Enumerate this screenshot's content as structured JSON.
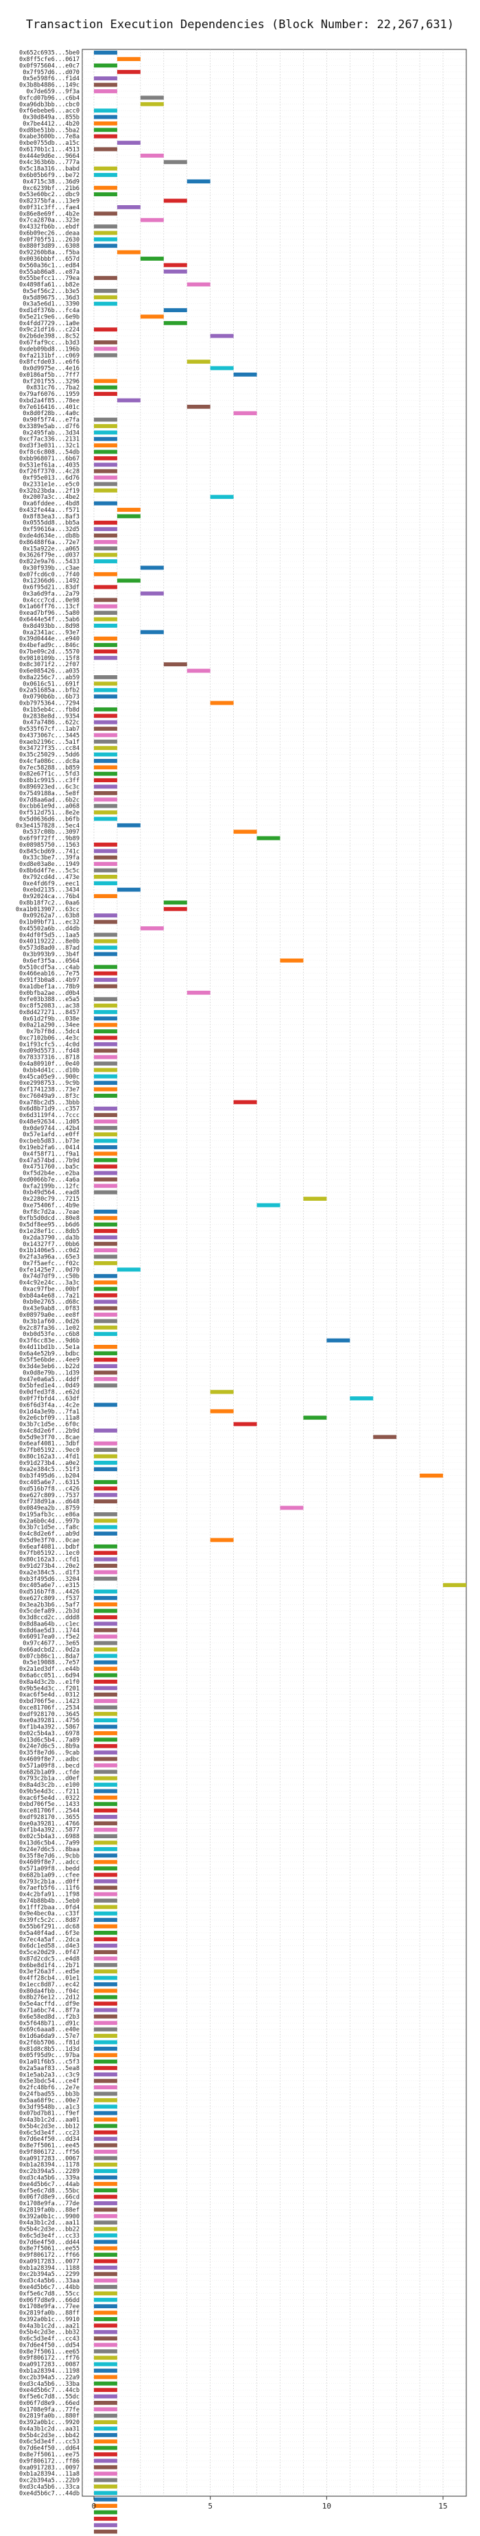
{
  "chart_data": {
    "type": "bar",
    "orientation": "horizontal-gantt",
    "title": "Transaction Execution Dependencies (Block Number: 22,267,631)",
    "xlabel": "",
    "ylabel": "",
    "xlim": [
      -0.5,
      16
    ],
    "xticks": [
      0,
      5,
      10,
      15
    ],
    "grid": true,
    "categories": [
      "0x652c6935...5be0",
      "0x8ff5cfe6...0617",
      "0x0f975604...e0c7",
      "0x7f957d6...d070",
      "0x5e598f6...f1d4",
      "0x3b8b4886...149c",
      "0x7de659...9f3a",
      "0xfcd07b96...c6b4",
      "0xa96db3bb...cbc0",
      "0xf6ebebe6...acc0",
      "0x30d849a...855b",
      "0x7be4412...4b20",
      "0xd8be51bb...5ba2",
      "0xabe3600b...7e8a",
      "0xbe0755db...a15c",
      "0x6170b1c1...4513",
      "0x444e9d6e...9664",
      "0x4c363b6b...777a",
      "0x5c18a316...babd",
      "0x6b05b6f9...be72",
      "0x4715c38...36d9",
      "0xc6239bf...21b6",
      "0x53e60bc2...dbc9",
      "0x82375bfa...13e9",
      "0x0f31c3ff...fae4",
      "0x86e8e69f...4b2e",
      "0x7ca2870a...323e",
      "0x4332fb6b...ebdf",
      "0x6b09ec26...deaa",
      "0x0f705f51...2630",
      "0x880f3d89...6308",
      "0x92260b8a...f5ba",
      "0x0036bbbf...657d",
      "0x560a36c1...ed84",
      "0x55ab86a8...e87a",
      "0x55befcc1...79ea",
      "0x4898fa61...b82e",
      "0x5ef56c2...b3e5",
      "0x5d89675...36d3",
      "0x3a5e6d1...3390",
      "0xd1df376b...fc4a",
      "0x5e21c9e6...6e9b",
      "0x4fdd7729...1a0e",
      "0x9c21df16...c224",
      "0x2b6de398...8c52",
      "0x67faf9cc...b3d3",
      "0xdeb09bd8...196b",
      "0xfa2131bf...c069",
      "0x8fcfde03...e6f6",
      "0x0d9975e...4e16",
      "0x0186af5b...7ff7",
      "0xf201f55...3296",
      "0x831c76...7ba2",
      "0x79af6076...1959",
      "0xbd2a4f85...78ee",
      "0x7e616416...401c",
      "0x8d0f28b...4a0c",
      "0x90f5f74...e7fa",
      "0x3389e5ab...d7f6",
      "0x2495fab...3d34",
      "0xcf7ac336...2131",
      "0xd3f3e031...32c1",
      "0xf8c6c808...54db",
      "0xbb968071...6b67",
      "0x531ef61a...4035",
      "0xf26f7370...4c28",
      "0xf95e013...6d76",
      "0x2331e1e...e5c0",
      "0x32b23bda...2f19",
      "0x2007a3c...4be2",
      "0xa6fddee...4bd8",
      "0x432fe44a...f571",
      "0x8f83ea3...8af3",
      "0x0555dd8...bb5a",
      "0xf59616a...32d5",
      "0xde4d634e...db8b",
      "0x86488f6a...72e7",
      "0x15a922e...a065",
      "0x3626f79e...d037",
      "0x822e9a76...5433",
      "0x30f939b...c3ae",
      "0x07fcd6c0...7f40",
      "0x12366d6...1492",
      "0x6f95d21...83df",
      "0x3a6d9fa...2a79",
      "0x4ccc7cd...0e98",
      "0x1a66ff76...13cf",
      "0xead7bf96...5a80",
      "0x6444e54f...5ab6",
      "0x8d493bb...8d98",
      "0xa2341ac...93e7",
      "0x39d0444e...e940",
      "0x4befad9c...846c",
      "0x7be09c2d...5570",
      "0x9810109b...15f8",
      "0x8c3071f2...2f07",
      "0x6e085426...a035",
      "0x8a2256c7...ab59",
      "0x0616c51...691f",
      "0x2a51685a...bfb2",
      "0x0790b6b...6b73",
      "0xb7975364...7294",
      "0x1b5eb4c...fb8d",
      "0x2838e8d...9354",
      "0x47a7486...622c",
      "0x535f67cf...1ab7",
      "0x4373067c...3445",
      "0xaeb2196c...5a1f",
      "0x34727f35...cc84",
      "0x35c25029...5dd6",
      "0x4cfa086c...dc8a",
      "0x7ec58288...b859",
      "0x82e67f1c...5fd3",
      "0x8b1c9915...c3ff",
      "0x896923ed...6c3c",
      "0x7549188a...5e8f",
      "0x7d8aa6ad...6b2c",
      "0xcbb61e9d...a068",
      "0xf512d751...8e2e",
      "0x5d0636d6...b6fb",
      "0x3e4157828...5ec4",
      "0x537c08b...3097",
      "0x6f9f72ff...9b89",
      "0x08985750...1563",
      "0x845cbd69...741c",
      "0x33c3be7...39fa",
      "0xd8e03a8e...1949",
      "0x8b6d4f7e...5c5c",
      "0x792cd4d...473e",
      "0xe4fd6f9...eec1",
      "0xebd2135...3434",
      "0x92024ca...76b4",
      "0x8b18f7c2...0aa6",
      "0xa1b013907...63cc",
      "0x09262a7...63b8",
      "0x1b09bf71...ec32",
      "0x45502a6b...d4db",
      "0x4df0f5d5...1aa5",
      "0x40119222...8e0b",
      "0x573d8ad0...87ad",
      "0x3b993b9...3b4f",
      "0x6ef3f5a...0564",
      "0x510cdf5a...c4ab",
      "0x466eab16...7e75",
      "0x91f3b0a8...4b97",
      "0xa1dbef1a...78b9",
      "0x0bfba2ae...d0b4",
      "0xfe03b388...e5a5",
      "0xc8f52083...ac38",
      "0x8d427271...8457",
      "0x61d2f9b...038e",
      "0x0a21a290...34ee",
      "0x7b7f8d...5dc4",
      "0xc7102b06...4e3c",
      "0x1f93cfc5...4c0d",
      "0xd09d5573...fd48",
      "0x78337316...8718",
      "0x4a80910f...0e40",
      "0xbb4d41c...d10b",
      "0x45ca05e9...900c",
      "0xe2998753...9c9b",
      "0xf1741238...73e7",
      "0xc76049a9...8f3c",
      "0xa78bc2d5...3bbb",
      "0x6d8b71d9...c357",
      "0x6d3119f4...7ccc",
      "0x48e92634...1d05",
      "0x0de9744...42b4",
      "0x57e1afd...e0ff",
      "0xcbeb5d83...b73e",
      "0x19eb2fa6...0414",
      "0x4f58f71...f9a1",
      "0x47a574bd...7b9d",
      "0x4751760...ba5c",
      "0xf5d2b4e...e2ba",
      "0xd0066b7e...4a6a",
      "0xfa2199b...12fc",
      "0xb49d564...ead8",
      "0x2280c79...7215",
      "0xe75406f...4b9e",
      "0xf8c7d2a...7eae",
      "0xfb5d0dcd...80e8",
      "0x5df8ee95...b6d6",
      "0x1e28ef1c...8db5",
      "0x2da3790...da3b",
      "0x14327f7...0bb6",
      "0x1b1406e5...c0d2",
      "0x2fa3a96a...65e3",
      "0x7f5aefc...f02c",
      "0xfe1425e7...0d70",
      "0x74d7df9...c50b",
      "0x4c92e24c...3a3c",
      "0xac97fbe...00bf",
      "0xb84a4e68...7a21",
      "0xb0e2765...d68c",
      "0x43e9ab8...0f83",
      "0x08979a0e...ee8f",
      "0x3b1af60...0d26",
      "0x2c87fa36...1e02",
      "0xb0d53fe...c6b8",
      "0x3f6cc83e...9d6b",
      "0x4d11bd1b...5e1a",
      "0x6a4e52b9...bdbc",
      "0x5f5e6bde...4ee9",
      "0x3d4e3eb6...b22d",
      "0x0d8e79b...1d39",
      "0x47e0a6a5...4ddf",
      "0x5bfed1e4...0d49",
      "0x0dfed3f8...e62d",
      "0x0f7fbfd4...63df",
      "0x6f6d3f4a...4c2e",
      "0x1d4a3e9b...7fa1",
      "0x2e6cbf09...11a8",
      "0x3b7c1d5e...6f0c",
      "0x4c8d2e6f...2b9d",
      "0x5d9e3f70...8cae",
      "0x6eaf4081...3dbf",
      "0x7fb05192...9ec0",
      "0x80c162a3...4fd1",
      "0x91d273b4...a0e2",
      "0xa2e384c5...51f3",
      "0xb3f495d6...b204",
      "0xc405a6e7...6315",
      "0xd516b7f8...c426",
      "0xe627c809...7537",
      "0xf738d91a...d648",
      "0x0849ea2b...8759",
      "0x195afb3c...e86a",
      "0x2a6b0c4d...997b",
      "0x3b7c1d5e...fa8c",
      "0x4c8d2e6f...ab9d",
      "0x5d9e3f70...0cae",
      "0x6eaf4081...bdbf",
      "0x7fb05192...1ec0",
      "0x80c162a3...cfd1",
      "0x91d273b4...20e2",
      "0xa2e384c5...d1f3",
      "0xb3f495d6...3204",
      "0xc405a6e7...e315",
      "0xd516b7f8...4426",
      "0xe627c809...f537",
      "0x3ea2b3b6...5af7",
      "0x5cdefa89...2b3d",
      "0x3d8ccd2c...ddd8",
      "0x8d8aa64b...c1ec",
      "0x8d6ae5d3...1744",
      "0x60917ea0...f5e2",
      "0x97c4677...3e65",
      "0x66adcbd2...0d2a",
      "0x07cb86c1...8da7",
      "0x5e19088...7e57",
      "0x2a1ed3df...e44b",
      "0x6a6cc051...6d94",
      "0x8a4d3c2b...e1f0",
      "0x9b5e4d3c...f201",
      "0xac6f5e4d...0312",
      "0xbd706f5e...1423",
      "0xce81706f...2534",
      "0xdf928170...3645",
      "0xe0a39281...4756",
      "0xf1b4a392...5867",
      "0x02c5b4a3...6978",
      "0x13d6c5b4...7a89",
      "0x24e7d6c5...8b9a",
      "0x35f8e7d6...9cab",
      "0x4609f8e7...adbc",
      "0x571a09f8...becd",
      "0x682b1a09...cfde",
      "0x793c2b1a...d0ef",
      "0x8a4d3c2b...e100",
      "0x9b5e4d3c...f211",
      "0xac6f5e4d...0322",
      "0xbd706f5e...1433",
      "0xce81706f...2544",
      "0xdf928170...3655",
      "0xe0a39281...4766",
      "0xf1b4a392...5877",
      "0x02c5b4a3...6988",
      "0x13d6c5b4...7a99",
      "0x24e7d6c5...8baa",
      "0x35f8e7d6...9cbb",
      "0x4609f8e7...adcc",
      "0x571a09f8...bedd",
      "0x682b1a09...cfee",
      "0x793c2b1a...d0ff",
      "0x7aefb5f6...11f6",
      "0x4c2bfa91...1f98",
      "0x74b88b4b...5eb0",
      "0x1fff2baa...0fd4",
      "0x9e4bec0a...c33f",
      "0x39fc5c2c...8d87",
      "0x55b6f291...dc68",
      "0x5a40f4ad...6f3e",
      "0x7ec4a5af...2dca",
      "0x6dc1ed58...d4e3",
      "0x5ce20d29...0f47",
      "0x87d2cdc5...e4d8",
      "0x6be8d1f4...2b71",
      "0x3ef26a3f...ed5e",
      "0x4ff28cb4...01e1",
      "0x1ecc8d87...ec42",
      "0x80da4fbb...f04c",
      "0x8b276e12...2d12",
      "0x5e4acffd...df9e",
      "0x71a6bc74...8f7a",
      "0x6e58ed8d...f2b3",
      "0x5f648b71...d91c",
      "0x69c6aaa8...e40e",
      "0x1d6a6da9...57e7",
      "0x2f6b5706...f81d",
      "0x81d8c8b5...1d3d",
      "0x05f95d9c...97ba",
      "0x1a01f6b5...c5f3",
      "0x2a5aaf83...5ea8",
      "0x1e5ab2a3...c3c9",
      "0x5e3bdc54...ce4f",
      "0x2fc48bf6...2e7e",
      "0x24fbad55...bb3b",
      "0x5aa68f9c...00e7",
      "0x3df9548b...a1c3",
      "0x07bd7b81...f9ef",
      "0x4a3b1c2d...aa01",
      "0x5b4c2d3e...bb12",
      "0x6c5d3e4f...cc23",
      "0x7d6e4f50...dd34",
      "0x8e7f5061...ee45",
      "0x9f806172...ff56",
      "0xa0917283...0067",
      "0xb1a28394...1178",
      "0xc2b394a5...2289",
      "0xd3c4a5b6...339a",
      "0xe4d5b6c7...44ab",
      "0xf5e6c7d8...55bc",
      "0x06f7d8e9...66cd",
      "0x1708e9fa...77de",
      "0x2819fa0b...88ef",
      "0x392a0b1c...9900",
      "0x4a3b1c2d...aa11",
      "0x5b4c2d3e...bb22",
      "0x6c5d3e4f...cc33",
      "0x7d6e4f50...dd44",
      "0x8e7f5061...ee55",
      "0x9f806172...ff66",
      "0xa0917283...0077",
      "0xb1a28394...1188",
      "0xc2b394a5...2299",
      "0xd3c4a5b6...33aa",
      "0xe4d5b6c7...44bb",
      "0xf5e6c7d8...55cc",
      "0x06f7d8e9...66dd",
      "0x1708e9fa...77ee",
      "0x2819fa0b...88ff",
      "0x392a0b1c...9910",
      "0x4a3b1c2d...aa21",
      "0x5b4c2d3e...bb32",
      "0x6c5d3e4f...cc43",
      "0x7d6e4f50...dd54",
      "0x8e7f5061...ee65",
      "0x9f806172...ff76",
      "0xa0917283...0087",
      "0xb1a28394...1198",
      "0xc2b394a5...22a9",
      "0xd3c4a5b6...33ba",
      "0xe4d5b6c7...44cb",
      "0xf5e6c7d8...55dc",
      "0x06f7d8e9...66ed",
      "0x1708e9fa...77fe",
      "0x2819fa0b...880f",
      "0x392a0b1c...9920",
      "0x4a3b1c2d...aa31",
      "0x5b4c2d3e...bb42",
      "0x6c5d3e4f...cc53",
      "0x7d6e4f50...dd64",
      "0x8e7f5061...ee75",
      "0x9f806172...ff86",
      "0xa0917283...0097",
      "0xb1a28394...11a8",
      "0xc2b394a5...22b9",
      "0xd3c4a5b6...33ca",
      "0xe4d5b6c7...44db"
    ],
    "start": [
      0,
      1,
      0,
      1,
      0,
      0,
      0,
      2,
      2,
      0,
      0,
      0,
      0,
      0,
      1,
      0,
      2,
      3,
      0,
      0,
      4,
      0,
      0,
      3,
      1,
      0,
      2,
      0,
      0,
      0,
      0,
      1,
      2,
      3,
      3,
      0,
      4,
      0,
      0,
      0,
      3,
      2,
      3,
      0,
      5,
      0,
      0,
      0,
      4,
      5,
      6,
      0,
      0,
      0,
      1,
      4,
      6,
      0,
      0,
      0,
      0,
      0,
      0,
      0,
      0,
      0,
      0,
      0,
      0,
      5,
      0,
      1,
      1,
      0,
      0,
      0,
      0,
      0,
      0,
      0,
      2,
      0,
      1,
      0,
      2,
      0,
      0,
      0,
      0,
      0,
      2,
      0,
      0,
      0,
      0,
      3,
      4,
      0,
      0,
      0,
      0,
      5,
      0,
      0,
      0,
      0,
      0,
      0,
      0,
      0,
      0,
      0,
      0,
      0,
      0,
      0,
      0,
      0,
      0,
      0,
      1,
      6,
      7,
      0,
      0,
      0,
      0,
      0,
      0,
      0,
      1,
      0,
      3,
      3,
      0,
      0,
      2,
      0,
      0,
      0,
      0,
      8,
      0,
      0,
      0,
      0,
      4,
      0,
      0,
      0,
      0,
      0,
      0,
      0,
      0,
      0,
      0,
      0,
      0,
      0,
      0,
      0,
      0,
      6,
      0,
      0,
      0,
      0,
      0,
      0,
      0,
      0,
      0,
      0,
      0,
      0,
      0,
      0,
      9,
      7,
      0,
      0,
      0,
      0,
      0,
      0,
      0,
      0,
      0,
      1,
      0,
      0,
      0,
      0,
      0,
      0,
      0,
      0,
      0,
      0,
      10,
      0,
      0,
      0,
      0,
      0,
      0,
      0,
      5,
      11,
      0,
      5,
      9,
      6,
      0,
      12,
      0,
      0,
      0,
      0,
      0,
      14,
      0,
      0,
      0,
      0,
      8,
      0,
      0,
      0,
      0,
      5,
      0,
      0,
      0,
      0,
      0,
      0,
      15,
      0,
      0,
      0,
      0,
      0,
      0,
      0,
      0,
      0,
      0,
      0,
      0,
      0,
      0,
      0,
      0,
      0,
      0,
      0,
      0,
      0,
      0,
      0,
      0,
      0,
      0,
      0,
      0,
      0,
      0,
      0,
      0,
      0,
      0,
      0,
      0,
      0,
      0,
      0,
      0,
      0,
      0,
      0,
      0,
      0,
      0,
      0,
      0,
      0,
      0,
      0,
      0,
      0,
      0,
      0,
      0,
      0,
      0,
      0,
      0,
      0,
      0,
      0,
      0,
      0,
      0,
      0,
      0,
      0,
      0,
      0,
      0,
      0,
      0,
      0,
      0,
      0,
      0,
      0,
      0,
      0,
      0,
      0,
      0,
      0,
      0,
      0,
      0,
      0,
      0,
      0,
      0,
      0,
      0,
      0,
      0,
      0,
      0,
      0,
      0,
      0,
      0,
      0,
      0,
      0,
      0,
      0,
      0,
      0,
      0,
      0,
      0,
      0,
      0,
      0,
      0,
      0,
      0,
      0,
      0,
      0,
      0,
      0,
      0,
      0,
      0,
      0,
      0,
      0,
      0,
      0,
      0,
      0,
      0,
      0,
      0,
      0,
      0,
      0,
      0,
      0,
      0,
      0,
      0,
      0,
      0,
      0,
      0,
      0,
      0,
      0,
      0,
      0,
      0,
      0,
      0,
      0,
      0,
      0,
      0,
      0
    ],
    "duration": [
      1,
      1,
      1,
      1,
      1,
      1,
      1,
      1,
      1,
      1,
      1,
      1,
      1,
      1,
      1,
      1,
      1,
      1,
      1,
      1,
      1,
      1,
      1,
      1,
      1,
      1,
      1,
      1,
      1,
      1,
      1,
      1,
      1,
      1,
      1,
      1,
      1,
      1,
      1,
      1,
      1,
      1,
      1,
      1,
      1,
      1,
      1,
      1,
      1,
      1,
      1,
      1,
      1,
      1,
      1,
      1,
      1,
      1,
      1,
      1,
      1,
      1,
      1,
      1,
      1,
      1,
      1,
      1,
      1,
      1,
      1,
      1,
      1,
      1,
      1,
      1,
      1,
      1,
      1,
      1,
      1,
      1,
      1,
      1,
      1,
      1,
      1,
      1,
      1,
      1,
      1,
      1,
      1,
      1,
      1,
      1,
      1,
      1,
      1,
      1,
      1,
      1,
      1,
      1,
      1,
      1,
      1,
      1,
      1,
      1,
      1,
      1,
      1,
      1,
      1,
      1,
      1,
      1,
      1,
      1,
      1,
      1,
      1,
      1,
      1,
      1,
      1,
      1,
      1,
      1,
      1,
      1,
      1,
      1,
      1,
      1,
      1,
      1,
      1,
      1,
      1,
      1,
      1,
      1,
      1,
      1,
      1,
      1,
      1,
      1,
      1,
      1,
      1,
      1,
      1,
      1,
      1,
      1,
      1,
      1,
      1,
      1,
      1,
      1,
      1,
      1,
      1,
      1,
      1,
      1,
      1,
      1,
      1,
      1,
      1,
      1,
      1,
      1,
      1,
      1,
      1,
      1,
      1,
      1,
      1,
      1,
      1,
      1,
      1,
      1,
      1,
      1,
      1,
      1,
      1,
      1,
      1,
      1,
      1,
      1,
      1,
      1,
      1,
      1,
      1,
      1,
      1,
      1,
      1,
      1,
      1,
      1,
      1,
      1,
      1,
      1,
      1,
      1,
      1,
      1,
      1,
      1,
      1,
      1,
      1,
      1,
      1,
      1,
      1,
      1,
      1,
      1,
      1,
      1,
      1,
      1,
      1,
      1,
      1,
      1,
      1,
      1,
      1,
      1,
      1,
      1,
      1,
      1,
      1,
      1,
      1,
      1,
      1,
      1,
      1,
      1,
      1,
      1,
      1,
      1,
      1,
      1,
      1,
      1,
      1,
      1,
      1,
      1,
      1,
      1,
      1,
      1,
      1,
      1,
      1,
      1,
      1,
      1,
      1,
      1,
      1,
      1,
      1,
      1,
      1,
      1,
      1,
      1,
      1,
      1,
      1,
      1,
      1,
      1,
      1,
      1,
      1,
      1,
      1,
      1,
      1,
      1,
      1,
      1,
      1,
      1,
      1,
      1,
      1,
      1,
      1,
      1,
      1,
      1,
      1,
      1,
      1,
      1,
      1,
      1,
      1,
      1,
      1,
      1,
      1,
      1,
      1,
      1,
      1,
      1,
      1,
      1,
      1,
      1,
      1,
      1,
      1,
      1,
      1,
      1,
      1,
      1,
      1,
      1,
      1,
      1,
      1,
      1,
      1,
      1,
      1,
      1,
      1,
      1,
      1,
      1,
      1,
      1,
      1,
      1,
      1,
      1,
      1,
      1,
      1,
      1,
      1,
      1,
      1,
      1,
      1,
      1,
      1,
      1,
      1,
      1,
      1,
      1,
      1,
      1,
      1,
      1,
      1,
      1,
      1,
      1,
      1,
      1,
      1,
      1,
      1,
      1,
      1,
      1,
      1,
      1,
      1,
      1,
      1,
      1
    ],
    "palette": [
      "#1f77b4",
      "#ff7f0e",
      "#2ca02c",
      "#d62728",
      "#9467bd",
      "#8c564b",
      "#e377c2",
      "#7f7f7f",
      "#bcbd22",
      "#17becf"
    ]
  }
}
